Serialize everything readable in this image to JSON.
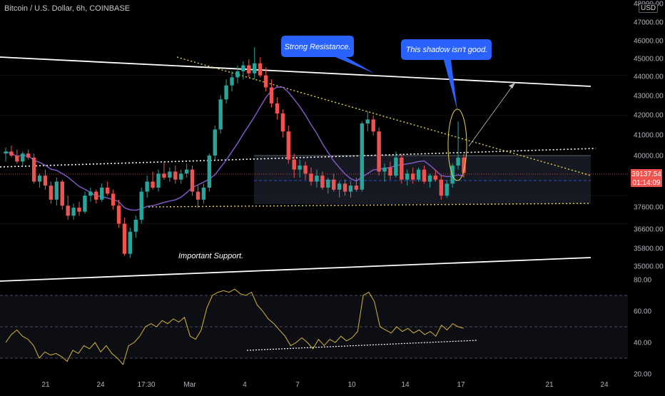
{
  "header": {
    "title": "Bitcoin / U.S. Dollar, 6h, COINBASE",
    "currency": "USD"
  },
  "annotations": {
    "resistance": "Strong Resistance.",
    "shadow": "This shadow isn't good.",
    "support": "Important Support."
  },
  "price_label": {
    "price": "39137.54",
    "countdown": "01:14:09"
  },
  "colors": {
    "up": "#26a69a",
    "down": "#ef5350",
    "ma": "#7e57c2",
    "rsi": "#d4b63b",
    "trendline": "#ffffff",
    "dotted_yellow": "#e6d44a",
    "bubble": "#2962ff",
    "background": "#000000"
  },
  "chart_data": [
    {
      "type": "candlestick",
      "title": "Bitcoin / U.S. Dollar, 6h, COINBASE",
      "y_ticks": [
        "35000.00",
        "35800.00",
        "36600.00",
        "37600.00",
        "39137.54",
        "40000.00",
        "41000.00",
        "42000.00",
        "43000.00",
        "44000.00",
        "45000.00",
        "46000.00",
        "47000.00",
        "48000.00"
      ],
      "x_ticks": [
        "21",
        "24",
        "17:30",
        "Mar",
        "4",
        "7",
        "10",
        "14",
        "17",
        "21",
        "24"
      ],
      "ylim": [
        34500,
        48000
      ],
      "last_price": 39137.54,
      "candles": [
        [
          40100,
          40400,
          39700,
          40200
        ],
        [
          40200,
          40500,
          39900,
          40000
        ],
        [
          40000,
          40300,
          39600,
          39700
        ],
        [
          39700,
          40200,
          39500,
          40100
        ],
        [
          40100,
          40300,
          39800,
          39900
        ],
        [
          39900,
          40100,
          38600,
          38700
        ],
        [
          38700,
          39100,
          38400,
          39000
        ],
        [
          39000,
          39300,
          38300,
          38500
        ],
        [
          38500,
          38700,
          37600,
          37800
        ],
        [
          37800,
          38900,
          37500,
          38700
        ],
        [
          38700,
          38800,
          37300,
          37500
        ],
        [
          37500,
          38000,
          36800,
          37000
        ],
        [
          37000,
          37600,
          36800,
          37400
        ],
        [
          37400,
          37700,
          37000,
          37200
        ],
        [
          37200,
          38200,
          37100,
          38000
        ],
        [
          38000,
          38400,
          37700,
          38200
        ],
        [
          38200,
          38300,
          37600,
          37800
        ],
        [
          37800,
          38600,
          37700,
          38400
        ],
        [
          38400,
          38700,
          38000,
          38100
        ],
        [
          38100,
          38300,
          37300,
          37500
        ],
        [
          37500,
          37800,
          36400,
          36600
        ],
        [
          36600,
          36900,
          35000,
          35100
        ],
        [
          35100,
          36400,
          34900,
          36200
        ],
        [
          36200,
          37000,
          35900,
          36800
        ],
        [
          36800,
          38400,
          36600,
          38200
        ],
        [
          38200,
          39000,
          37900,
          38700
        ],
        [
          38700,
          39200,
          38300,
          38400
        ],
        [
          38400,
          39300,
          38200,
          39100
        ],
        [
          39100,
          39700,
          38800,
          38900
        ],
        [
          38900,
          39400,
          38700,
          39200
        ],
        [
          39200,
          39500,
          38600,
          38800
        ],
        [
          38800,
          39300,
          38600,
          39100
        ],
        [
          39100,
          39600,
          38900,
          39300
        ],
        [
          39300,
          39500,
          38000,
          38200
        ],
        [
          38200,
          38500,
          37400,
          37800
        ],
        [
          37800,
          38600,
          37600,
          38400
        ],
        [
          38400,
          40100,
          38200,
          40000
        ],
        [
          40000,
          41500,
          39800,
          41300
        ],
        [
          41300,
          43000,
          41100,
          42800
        ],
        [
          42800,
          43800,
          42600,
          43500
        ],
        [
          43500,
          44200,
          43200,
          43900
        ],
        [
          43900,
          44500,
          43600,
          44200
        ],
        [
          44200,
          44700,
          43800,
          44500
        ],
        [
          44500,
          44800,
          43900,
          44100
        ],
        [
          44100,
          45400,
          43800,
          44600
        ],
        [
          44600,
          44900,
          43900,
          44000
        ],
        [
          44000,
          44400,
          43200,
          43400
        ],
        [
          43400,
          43800,
          42400,
          42600
        ],
        [
          42600,
          42900,
          41800,
          42100
        ],
        [
          42100,
          42300,
          40900,
          41200
        ],
        [
          41200,
          41500,
          39600,
          39800
        ],
        [
          39800,
          40100,
          38900,
          39300
        ],
        [
          39300,
          39800,
          38900,
          39500
        ],
        [
          39500,
          39700,
          38800,
          39100
        ],
        [
          39100,
          39400,
          38500,
          38700
        ],
        [
          38700,
          39300,
          38400,
          39000
        ],
        [
          39000,
          39200,
          38300,
          38400
        ],
        [
          38400,
          38900,
          38100,
          38800
        ],
        [
          38800,
          39100,
          38200,
          38300
        ],
        [
          38300,
          38700,
          37900,
          38600
        ],
        [
          38600,
          38800,
          38000,
          38200
        ],
        [
          38200,
          38700,
          37900,
          38500
        ],
        [
          38500,
          38900,
          38200,
          38300
        ],
        [
          38300,
          41700,
          38200,
          41600
        ],
        [
          41600,
          42200,
          41200,
          41800
        ],
        [
          41800,
          42000,
          41000,
          41200
        ],
        [
          41200,
          41400,
          39000,
          39200
        ],
        [
          39200,
          39600,
          38700,
          39400
        ],
        [
          39400,
          39700,
          38800,
          39000
        ],
        [
          39000,
          40200,
          38900,
          39900
        ],
        [
          39900,
          40100,
          38600,
          38800
        ],
        [
          38800,
          39300,
          38500,
          39100
        ],
        [
          39100,
          39400,
          38600,
          38800
        ],
        [
          38800,
          39400,
          38700,
          39300
        ],
        [
          39300,
          39500,
          38600,
          38700
        ],
        [
          38700,
          39100,
          38400,
          39000
        ],
        [
          39000,
          39300,
          38700,
          38800
        ],
        [
          38800,
          39000,
          37800,
          38000
        ],
        [
          38000,
          38800,
          37900,
          38600
        ],
        [
          38600,
          39600,
          38400,
          39500
        ],
        [
          39500,
          41700,
          39300,
          39900
        ],
        [
          39900,
          40100,
          38900,
          39137.54
        ]
      ]
    },
    {
      "type": "line",
      "title": "RSI",
      "y_ticks": [
        "20.00",
        "40.00",
        "60.00",
        "80.00"
      ],
      "ylim": [
        18,
        85
      ],
      "bands": [
        30,
        50,
        70
      ],
      "series": [
        {
          "values": [
            40,
            45,
            48,
            44,
            42,
            38,
            30,
            34,
            32,
            33,
            31,
            28,
            35,
            33,
            38,
            36,
            40,
            34,
            38,
            33,
            30,
            26,
            38,
            40,
            44,
            50,
            52,
            50,
            54,
            52,
            55,
            53,
            56,
            44,
            42,
            48,
            62,
            70,
            72,
            73,
            72,
            74,
            71,
            70,
            72,
            64,
            60,
            55,
            52,
            48,
            44,
            38,
            40,
            43,
            40,
            36,
            42,
            38,
            42,
            40,
            44,
            41,
            43,
            47,
            70,
            72,
            66,
            50,
            48,
            46,
            50,
            47,
            49,
            46,
            48,
            45,
            47,
            44,
            51,
            48,
            52,
            50,
            49
          ]
        }
      ]
    }
  ]
}
